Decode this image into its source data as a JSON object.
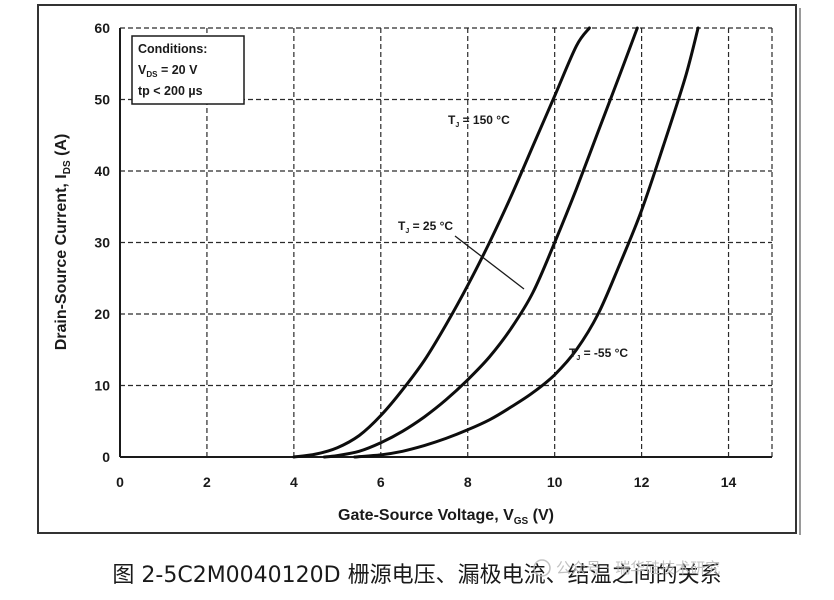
{
  "chart_data": {
    "type": "line",
    "xlabel_main": "Gate-Source Voltage, V",
    "xlabel_sub": "GS",
    "xlabel_unit": " (V)",
    "ylabel_main": "Drain-Source Current, I",
    "ylabel_sub": "DS",
    "ylabel_unit": " (A)",
    "xlim": [
      0,
      15
    ],
    "ylim": [
      0,
      60
    ],
    "x_ticks": [
      "0",
      "2",
      "4",
      "6",
      "8",
      "10",
      "12",
      "14"
    ],
    "y_ticks": [
      "0",
      "10",
      "20",
      "30",
      "40",
      "50",
      "60"
    ],
    "grid": true,
    "conditions": {
      "title": "Conditions:",
      "vds_main": "V",
      "vds_sub": "DS",
      "vds_value": " = 20 V",
      "tp": "tp < 200 µs"
    },
    "series": [
      {
        "name": "TJ = 150 °C",
        "x": [
          4.0,
          4.5,
          5.0,
          5.5,
          6.0,
          6.5,
          7.0,
          7.5,
          8.0,
          8.5,
          9.0,
          9.5,
          10.0,
          10.5,
          10.8
        ],
        "y": [
          0,
          0.4,
          1.3,
          3.0,
          5.8,
          9.4,
          13.5,
          18.5,
          24.0,
          30.0,
          36.5,
          43.5,
          50.5,
          57.5,
          60
        ]
      },
      {
        "name": "TJ = 25 °C",
        "x": [
          4.7,
          5.0,
          5.5,
          6.0,
          6.5,
          7.0,
          7.5,
          8.0,
          8.5,
          9.0,
          9.5,
          10.0,
          10.5,
          11.0,
          11.5,
          11.9
        ],
        "y": [
          0,
          0.2,
          0.8,
          2.0,
          3.6,
          5.6,
          8.0,
          10.8,
          14.0,
          18.0,
          23.0,
          30.0,
          37.5,
          45.5,
          53.5,
          60
        ]
      },
      {
        "name": "TJ = -55 °C",
        "x": [
          5.4,
          6.0,
          6.5,
          7.0,
          7.5,
          8.0,
          8.5,
          9.0,
          9.5,
          10.0,
          10.5,
          11.0,
          11.5,
          12.0,
          12.5,
          13.0,
          13.3
        ],
        "y": [
          0,
          0.3,
          0.8,
          1.6,
          2.6,
          3.8,
          5.2,
          7.0,
          9.0,
          11.5,
          15.0,
          20.0,
          27.0,
          34.5,
          43.5,
          53.0,
          60
        ]
      }
    ],
    "annotations": [
      {
        "main": "T",
        "sub": "J",
        "rest": " = 150 °C"
      },
      {
        "main": "T",
        "sub": "J",
        "rest": " = 25 °C"
      },
      {
        "main": "T",
        "sub": "J",
        "rest": " = -55 °C"
      }
    ]
  },
  "caption": "图 2-5C2M0040120D 栅源电压、漏极电流、结温之间的关系",
  "watermark": "公众号 · 瑞华硅技术研究"
}
